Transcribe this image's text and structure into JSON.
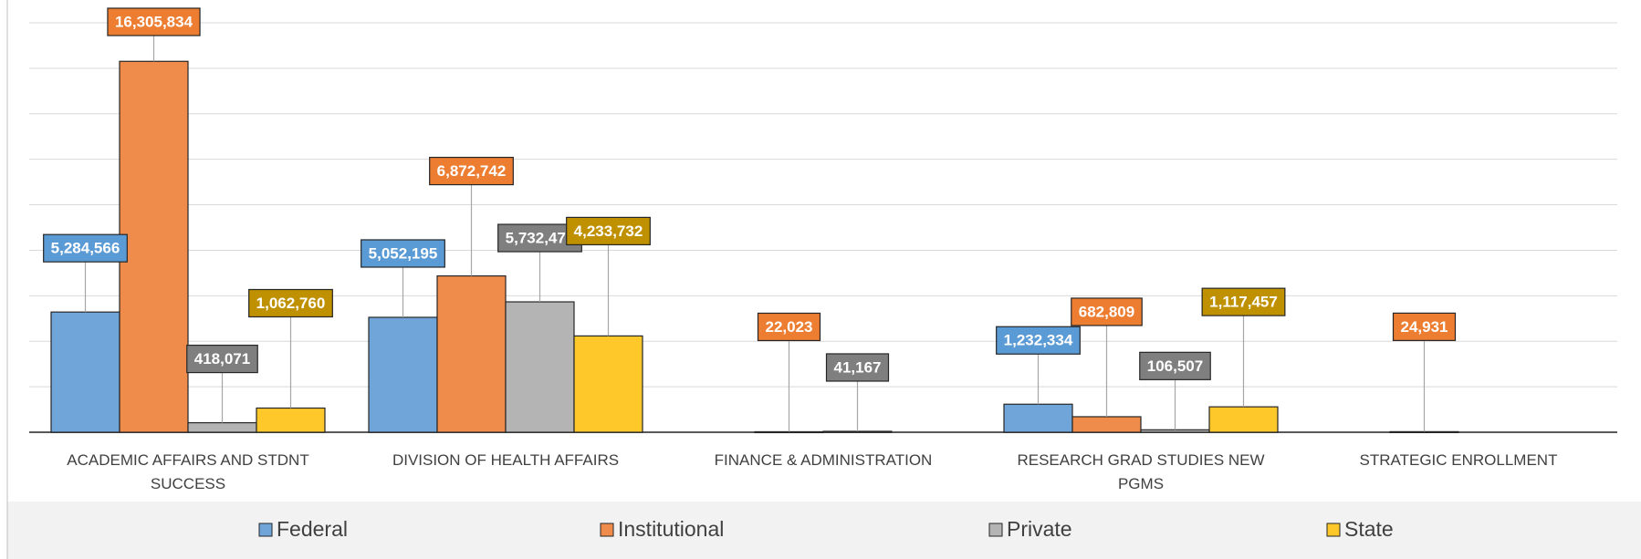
{
  "chart_data": {
    "type": "bar",
    "categories": [
      "ACADEMIC AFFAIRS AND STDNT SUCCESS",
      "DIVISION OF HEALTH AFFAIRS",
      "FINANCE & ADMINISTRATION",
      "RESEARCH GRAD STUDIES NEW PGMS",
      "STRATEGIC ENROLLMENT"
    ],
    "series": [
      {
        "name": "Federal",
        "color": "#70a5da",
        "label_color": "#5b9bd5",
        "values": [
          5284566,
          5052195,
          null,
          1232334,
          null
        ],
        "value_labels": [
          "5,284,566",
          "5,052,195",
          null,
          "1,232,334",
          null
        ]
      },
      {
        "name": "Institutional",
        "color": "#ef8c4c",
        "label_color": "#ed7d31",
        "values": [
          16305834,
          6872742,
          22023,
          682809,
          24931
        ],
        "value_labels": [
          "16,305,834",
          "6,872,742",
          "22,023",
          "682,809",
          "24,931"
        ]
      },
      {
        "name": "Private",
        "color": "#b4b4b4",
        "label_color": "#7f7f7f",
        "values": [
          418071,
          5732472,
          41167,
          106507,
          null
        ],
        "value_labels": [
          "418,071",
          "5,732,472",
          "41,167",
          "106,507",
          null
        ]
      },
      {
        "name": "State",
        "color": "#fec72a",
        "label_color": "#bf9000",
        "values": [
          1062760,
          4233732,
          null,
          1117457,
          null
        ],
        "value_labels": [
          "1,062,760",
          "4,233,732",
          null,
          "1,117,457",
          null
        ]
      }
    ],
    "ylim": [
      0,
      18000000
    ],
    "yticks": [
      0,
      2000000,
      4000000,
      6000000,
      8000000,
      10000000,
      12000000,
      14000000,
      16000000,
      18000000
    ],
    "grid": true,
    "legend": "bottom"
  }
}
